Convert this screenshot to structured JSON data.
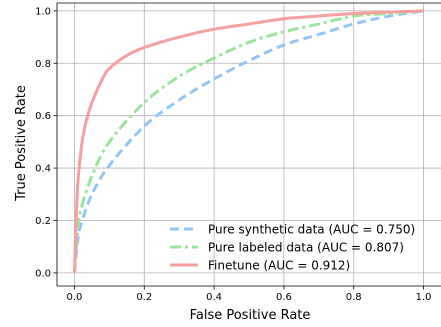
{
  "chart_data": {
    "type": "line",
    "title": "",
    "xlabel": "False Positive Rate",
    "ylabel": "True Positive Rate",
    "xlim": [
      -0.05,
      1.05
    ],
    "ylim": [
      -0.05,
      1.03
    ],
    "xticks": [
      0.0,
      0.2,
      0.4,
      0.6,
      0.8,
      1.0
    ],
    "xtick_labels": [
      "0.0",
      "0.2",
      "0.4",
      "0.6",
      "0.8",
      "1.0"
    ],
    "yticks": [
      0.0,
      0.2,
      0.4,
      0.6,
      0.8,
      1.0
    ],
    "ytick_labels": [
      "0.0",
      "0.2",
      "0.4",
      "0.6",
      "0.8",
      "1.0"
    ],
    "grid": true,
    "legend_position": "bottom-right",
    "series": [
      {
        "name": "Pure synthetic data (AUC = 0.750)",
        "color": "#92c5f7",
        "linestyle": "dashed",
        "x": [
          0.0,
          0.01,
          0.02,
          0.05,
          0.1,
          0.2,
          0.3,
          0.4,
          0.5,
          0.6,
          0.7,
          0.8,
          0.9,
          1.0
        ],
        "y": [
          0.0,
          0.13,
          0.19,
          0.3,
          0.41,
          0.56,
          0.66,
          0.74,
          0.81,
          0.87,
          0.91,
          0.95,
          0.98,
          1.0
        ]
      },
      {
        "name": "Pure labeled data (AUC = 0.807)",
        "color": "#98e59a",
        "linestyle": "dashdot",
        "x": [
          0.0,
          0.01,
          0.02,
          0.05,
          0.1,
          0.2,
          0.3,
          0.4,
          0.5,
          0.6,
          0.7,
          0.8,
          0.9,
          1.0
        ],
        "y": [
          0.0,
          0.17,
          0.25,
          0.37,
          0.5,
          0.65,
          0.75,
          0.82,
          0.88,
          0.92,
          0.95,
          0.98,
          0.99,
          1.0
        ]
      },
      {
        "name": "Finetune (AUC = 0.912)",
        "color": "#f79e9e",
        "linestyle": "solid",
        "x": [
          0.0,
          0.005,
          0.01,
          0.02,
          0.03,
          0.05,
          0.08,
          0.1,
          0.15,
          0.2,
          0.3,
          0.4,
          0.5,
          0.6,
          0.7,
          0.8,
          0.9,
          1.0
        ],
        "y": [
          0.0,
          0.2,
          0.35,
          0.48,
          0.56,
          0.65,
          0.74,
          0.78,
          0.83,
          0.86,
          0.9,
          0.93,
          0.95,
          0.97,
          0.98,
          0.99,
          0.995,
          1.0
        ]
      }
    ]
  }
}
